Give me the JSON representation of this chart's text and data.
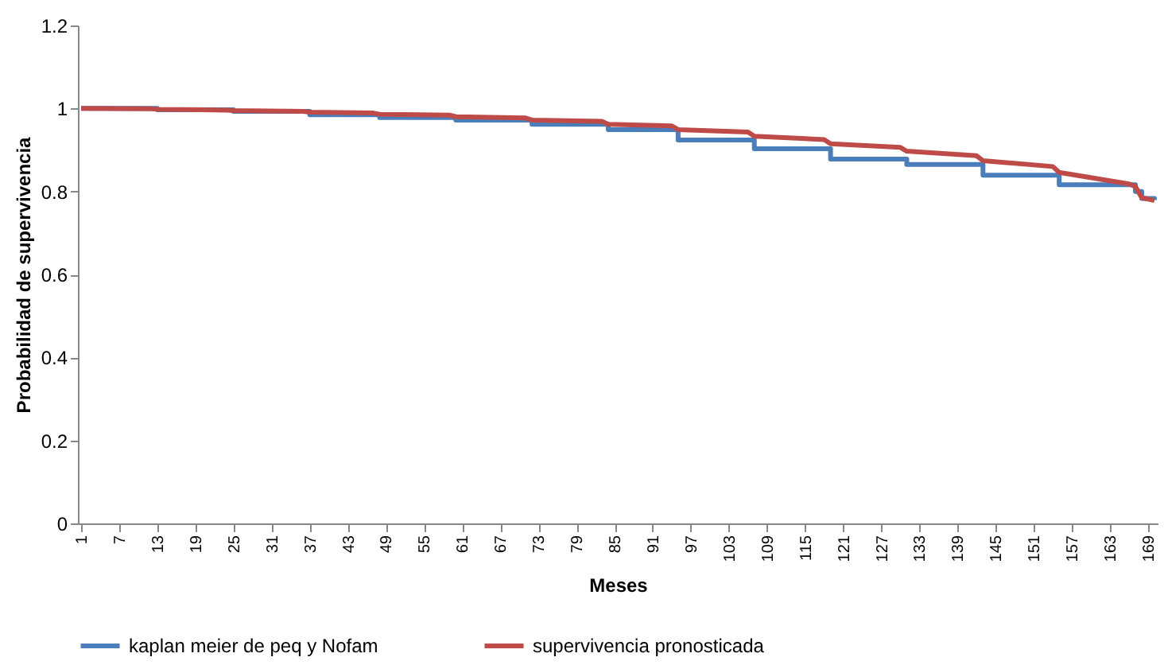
{
  "chart_data": {
    "type": "line",
    "xlabel": "Meses",
    "ylabel": "Probabilidad de supervivencia",
    "xlim": [
      0.5,
      170.5
    ],
    "xticks": [
      1,
      7,
      13,
      19,
      25,
      31,
      37,
      43,
      49,
      55,
      61,
      67,
      73,
      79,
      85,
      91,
      97,
      103,
      109,
      115,
      121,
      127,
      133,
      139,
      145,
      151,
      157,
      163,
      169
    ],
    "ylim": [
      0,
      1.2
    ],
    "yticks": [
      0,
      0.2,
      0.4,
      0.6,
      0.8,
      1,
      1.2
    ],
    "grid": false,
    "legend": "bottom",
    "marker": "none",
    "series": [
      {
        "name": "kaplan meier de peq y Nofam",
        "type": "step",
        "color": "#4a7ebb",
        "x": [
          1,
          13,
          25,
          37,
          48,
          60,
          72,
          84,
          95,
          107,
          119,
          131,
          143,
          155,
          167,
          168,
          170
        ],
        "values": [
          1.0,
          0.997,
          0.993,
          0.985,
          0.978,
          0.972,
          0.962,
          0.949,
          0.924,
          0.903,
          0.878,
          0.865,
          0.839,
          0.816,
          0.8,
          0.783,
          0.779
        ]
      },
      {
        "name": "supervivencia pronosticada",
        "color": "#be4b48",
        "x": [
          1,
          12,
          13,
          24,
          25,
          36,
          37,
          47,
          48,
          59,
          60,
          71,
          72,
          83,
          84,
          94,
          95,
          106,
          107,
          118,
          119,
          130,
          131,
          142,
          143,
          154,
          155,
          166,
          167,
          168,
          170
        ],
        "values": [
          1.0,
          0.999,
          0.998,
          0.996,
          0.995,
          0.993,
          0.991,
          0.989,
          0.986,
          0.984,
          0.98,
          0.977,
          0.972,
          0.969,
          0.962,
          0.958,
          0.949,
          0.943,
          0.933,
          0.925,
          0.915,
          0.906,
          0.897,
          0.886,
          0.874,
          0.86,
          0.846,
          0.818,
          0.812,
          0.785,
          0.778
        ]
      }
    ]
  }
}
